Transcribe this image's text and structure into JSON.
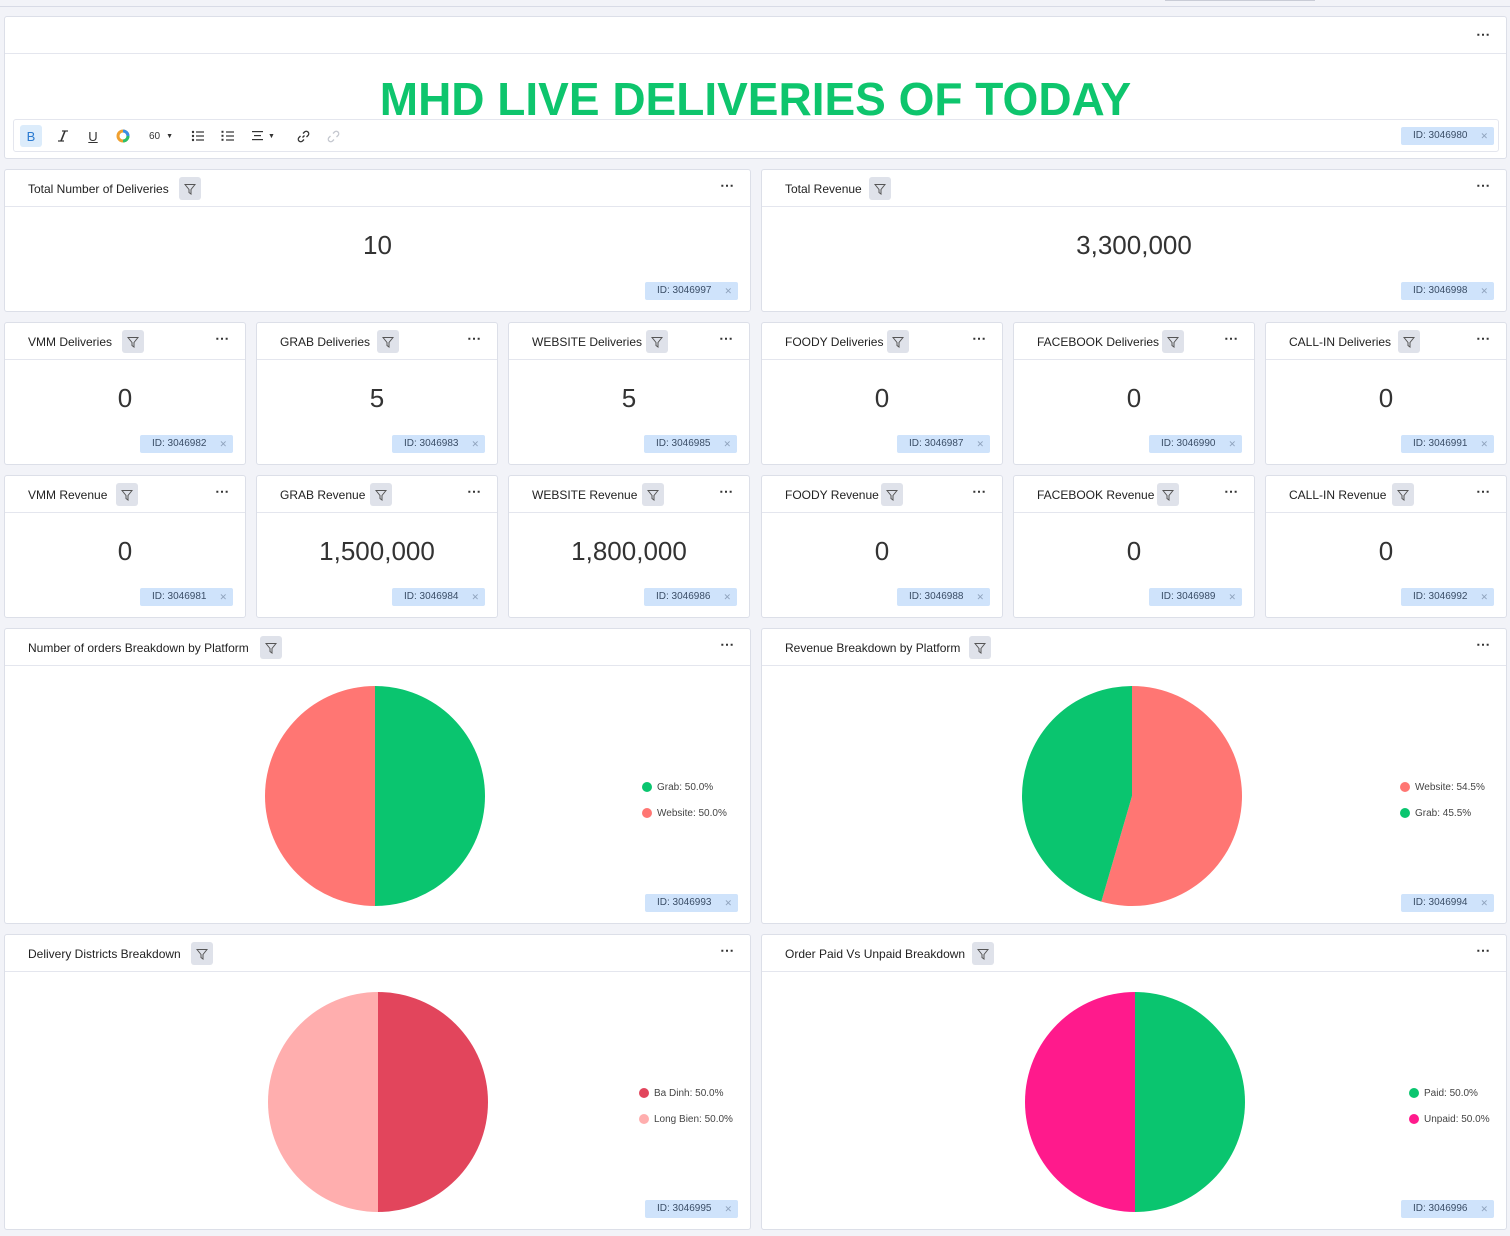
{
  "title_card": {
    "title": "MHD LIVE DELIVERIES OF TODAY",
    "id": "ID: 3046980",
    "toolbar": {
      "font_size": "60"
    }
  },
  "totals": [
    {
      "title": "Total Number of Deliveries",
      "value": "10",
      "id": "ID: 3046997"
    },
    {
      "title": "Total Revenue",
      "value": "3,300,000",
      "id": "ID: 3046998"
    }
  ],
  "deliveries": [
    {
      "title": "VMM Deliveries",
      "value": "0",
      "id": "ID: 3046982"
    },
    {
      "title": "GRAB Deliveries",
      "value": "5",
      "id": "ID: 3046983"
    },
    {
      "title": "WEBSITE Deliveries",
      "value": "5",
      "id": "ID: 3046985"
    },
    {
      "title": "FOODY Deliveries",
      "value": "0",
      "id": "ID: 3046987"
    },
    {
      "title": "FACEBOOK Deliveries",
      "value": "0",
      "id": "ID: 3046990"
    },
    {
      "title": "CALL-IN Deliveries",
      "value": "0",
      "id": "ID: 3046991"
    }
  ],
  "revenues": [
    {
      "title": "VMM Revenue",
      "value": "0",
      "id": "ID: 3046981"
    },
    {
      "title": "GRAB Revenue",
      "value": "1,500,000",
      "id": "ID: 3046984"
    },
    {
      "title": "WEBSITE Revenue",
      "value": "1,800,000",
      "id": "ID: 3046986"
    },
    {
      "title": "FOODY Revenue",
      "value": "0",
      "id": "ID: 3046988"
    },
    {
      "title": "FACEBOOK Revenue",
      "value": "0",
      "id": "ID: 3046989"
    },
    {
      "title": "CALL-IN Revenue",
      "value": "0",
      "id": "ID: 3046992"
    }
  ],
  "pies": [
    {
      "title": "Number of orders Breakdown by Platform",
      "id": "ID: 3046993"
    },
    {
      "title": "Revenue Breakdown by Platform",
      "id": "ID: 3046994"
    },
    {
      "title": "Delivery Districts Breakdown",
      "id": "ID: 3046995"
    },
    {
      "title": "Order Paid Vs Unpaid Breakdown",
      "id": "ID: 3046996"
    }
  ],
  "chart_data": [
    {
      "type": "pie",
      "title": "Number of orders Breakdown by Platform",
      "labels": [
        "Grab",
        "Website"
      ],
      "values": [
        50.0,
        50.0
      ],
      "legend_labels": [
        "Grab: 50.0%",
        "Website: 50.0%"
      ],
      "colors": [
        "#0ac56f",
        "#ff7673"
      ],
      "legend": "right"
    },
    {
      "type": "pie",
      "title": "Revenue Breakdown by Platform",
      "labels": [
        "Website",
        "Grab"
      ],
      "values": [
        54.5,
        45.5
      ],
      "legend_labels": [
        "Website: 54.5%",
        "Grab: 45.5%"
      ],
      "colors": [
        "#ff7673",
        "#0ac56f"
      ],
      "legend": "right"
    },
    {
      "type": "pie",
      "title": "Delivery Districts Breakdown",
      "labels": [
        "Ba Dinh",
        "Long Bien"
      ],
      "values": [
        50.0,
        50.0
      ],
      "legend_labels": [
        "Ba Dinh: 50.0%",
        "Long Bien: 50.0%"
      ],
      "colors": [
        "#e2455c",
        "#ffaeae"
      ],
      "legend": "right"
    },
    {
      "type": "pie",
      "title": "Order Paid Vs Unpaid Breakdown",
      "labels": [
        "Paid",
        "Unpaid"
      ],
      "values": [
        50.0,
        50.0
      ],
      "legend_labels": [
        "Paid: 50.0%",
        "Unpaid: 50.0%"
      ],
      "colors": [
        "#0ac56f",
        "#ff1a8c"
      ],
      "legend": "right"
    }
  ],
  "icons": {
    "filter": "filter-icon",
    "more": "more-options-icon"
  }
}
